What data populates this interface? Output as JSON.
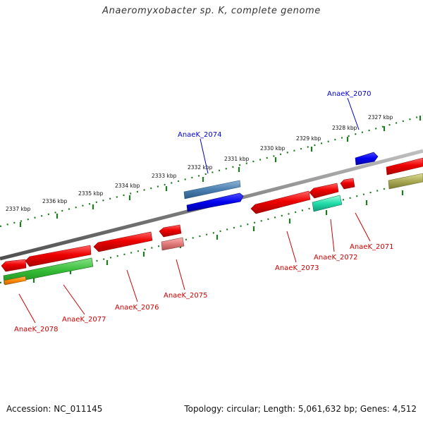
{
  "title": "Anaeromyxobacter sp. K, complete genome",
  "footer": {
    "accession": "Accession: NC_011145",
    "topology": "Topology: circular; Length: 5,061,632 bp; Genes: 4,512"
  },
  "ticks": [
    "2337 kbp",
    "2336 kbp",
    "2335 kbp",
    "2334 kbp",
    "2333 kbp",
    "2332 kbp",
    "2331 kbp",
    "2330 kbp",
    "2329 kbp",
    "2328 kbp",
    "2327 kbp"
  ],
  "genes_forward": [
    {
      "label": "AnaeK_2074",
      "color": "#0000cc"
    },
    {
      "label": "AnaeK_2070",
      "color": "#0000cc"
    }
  ],
  "genes_reverse": [
    {
      "label": "AnaeK_2078",
      "color": "#cc0000"
    },
    {
      "label": "AnaeK_2077",
      "color": "#cc0000"
    },
    {
      "label": "AnaeK_2076",
      "color": "#cc0000"
    },
    {
      "label": "AnaeK_2075",
      "color": "#cc0000"
    },
    {
      "label": "AnaeK_2073",
      "color": "#cc0000"
    },
    {
      "label": "AnaeK_2072",
      "color": "#cc0000"
    },
    {
      "label": "AnaeK_2071",
      "color": "#cc0000"
    }
  ],
  "colors": {
    "backbone": "#808080",
    "tick_marks": "#1e7a1e",
    "gene_red": "#ee0000",
    "gene_blue": "#0000ee",
    "gene_steelblue": "#4a7fb0",
    "gene_green": "#33bb33",
    "gene_orange": "#ff8800",
    "gene_teal": "#22ddaa",
    "gene_olive": "#aaaa55",
    "gene_pink": "#e07a7a"
  }
}
